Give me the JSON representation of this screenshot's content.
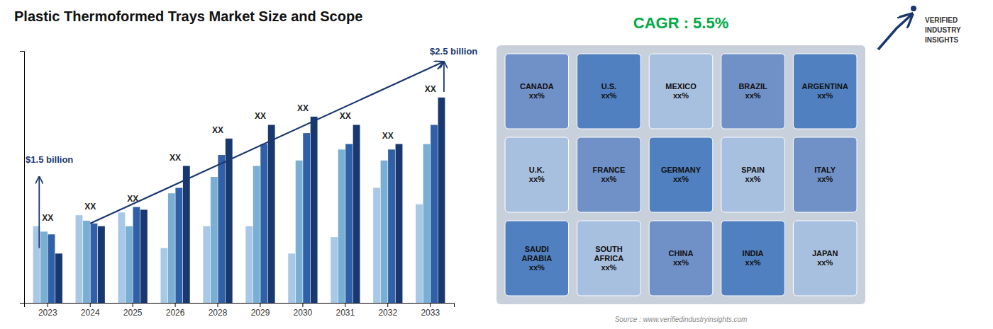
{
  "chart_data": {
    "type": "bar",
    "title": "Plastic Thermoformed Trays Market Size and Scope",
    "categories": [
      "2023",
      "2024",
      "2025",
      "2026",
      "2028",
      "2029",
      "2030",
      "2031",
      "2032",
      "2033"
    ],
    "series": [
      {
        "color": "#a8c8e8",
        "values": [
          0.28,
          0.32,
          0.33,
          0.2,
          0.28,
          0.28,
          0.18,
          0.24,
          0.42,
          0.36
        ]
      },
      {
        "color": "#7aafd4",
        "values": [
          0.26,
          0.3,
          0.28,
          0.4,
          0.46,
          0.5,
          0.52,
          0.56,
          0.52,
          0.58
        ]
      },
      {
        "color": "#3060a8",
        "values": [
          0.25,
          0.29,
          0.35,
          0.42,
          0.54,
          0.58,
          0.62,
          0.58,
          0.56,
          0.65
        ]
      },
      {
        "color": "#1a3870",
        "values": [
          0.18,
          0.28,
          0.34,
          0.5,
          0.6,
          0.65,
          0.68,
          0.65,
          0.58,
          0.75
        ]
      }
    ],
    "ylim": [
      0,
      0.92
    ],
    "yticks": [],
    "tick_labels": "x",
    "grid": false,
    "group_labels": [
      "XX",
      "XX",
      "XX",
      "XX",
      "XX",
      "XX",
      "XX",
      "XX",
      "XX",
      "XX"
    ],
    "annotations": [
      {
        "text": "$1.5 billion",
        "color": "#1a3870"
      },
      {
        "text": "$2.5 billion",
        "color": "#1a3870"
      },
      {
        "text": "CAGR : 5.5%",
        "color": "#00aa44"
      },
      {
        "text": "Source : www.verifiedindustryinsights.com",
        "color": "#888888"
      }
    ],
    "map_labels": [
      "CANADA\nxx%",
      "U.S.\nxx%",
      "MEXICO\nxx%",
      "BRAZIL\nxx%",
      "ARGENTINA\nxx%",
      "U.K.\nxx%",
      "FRANCE\nxx%",
      "GERMANY\nxx%",
      "SPAIN\nxx%",
      "ITALY\nxx%",
      "SAUDI\nARABIA\nxx%",
      "SOUTH\nAFRICA\nxx%",
      "CHINA\nxx%",
      "INDIA\nxx%",
      "JAPAN\nxx%"
    ],
    "logo_text": "VERIFIED\nINDUSTRY\nINSIGHTS"
  }
}
